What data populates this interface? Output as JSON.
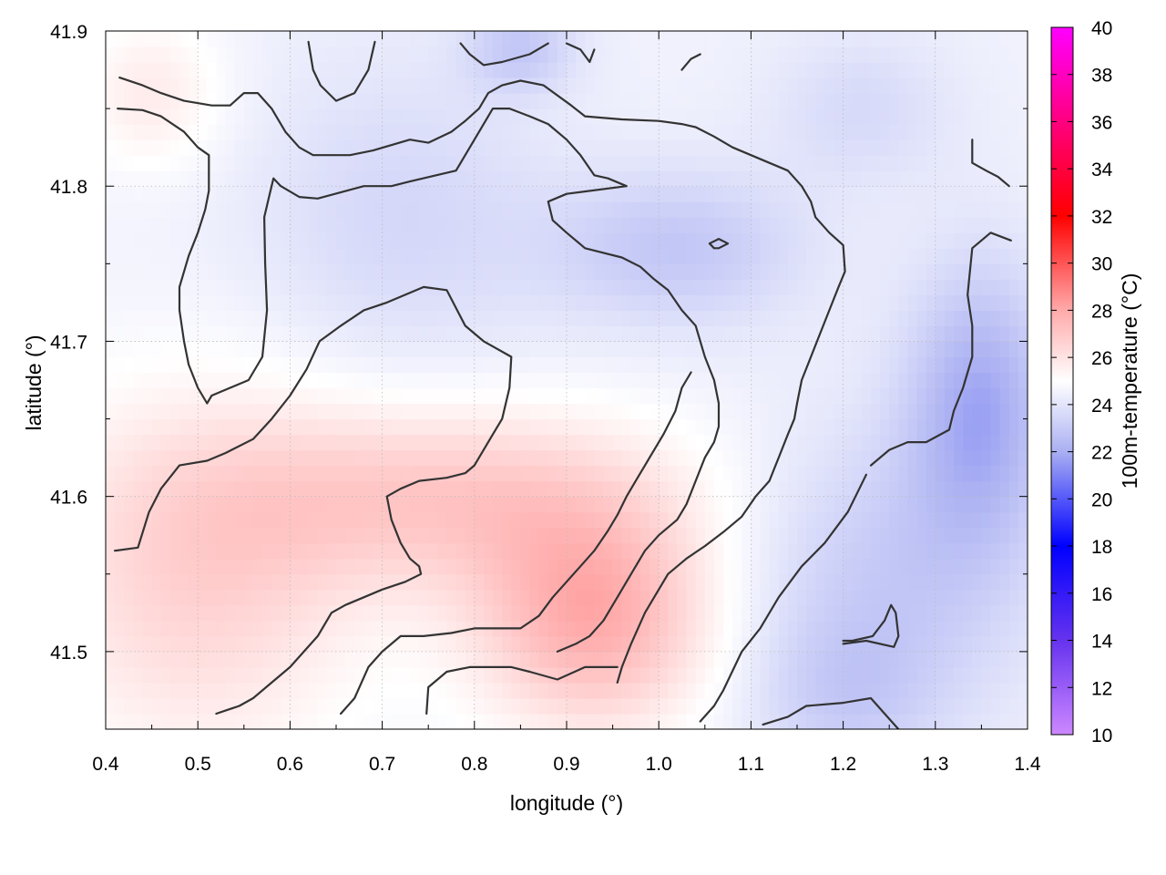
{
  "chart_data": {
    "type": "heatmap",
    "title": "",
    "xlabel": "longitude (°)",
    "ylabel": "latitude (°)",
    "colorbar_label": "100m-temperature (°C)",
    "xlim": [
      0.4,
      1.4
    ],
    "ylim": [
      41.45,
      41.9
    ],
    "x_ticks": [
      "0.4",
      "0.5",
      "0.6",
      "0.7",
      "0.8",
      "0.9",
      "1.0",
      "1.1",
      "1.2",
      "1.3",
      "1.4"
    ],
    "y_ticks": [
      "41.5",
      "41.6",
      "41.7",
      "41.8",
      "41.9"
    ],
    "colorbar_range": [
      10,
      40
    ],
    "colorbar_ticks": [
      "10",
      "12",
      "14",
      "16",
      "18",
      "20",
      "22",
      "24",
      "26",
      "28",
      "30",
      "32",
      "34",
      "36",
      "38",
      "40"
    ],
    "colormap": {
      "stops": [
        {
          "value": 10,
          "color": "#cc88ff"
        },
        {
          "value": 14,
          "color": "#6633ee"
        },
        {
          "value": 18,
          "color": "#0000ff"
        },
        {
          "value": 22,
          "color": "#aab0f2"
        },
        {
          "value": 25,
          "color": "#ffffff"
        },
        {
          "value": 28,
          "color": "#ffaaaa"
        },
        {
          "value": 32,
          "color": "#ff0000"
        },
        {
          "value": 40,
          "color": "#ff00ff"
        }
      ]
    },
    "grid": true,
    "field": {
      "base_temperature": 24.5,
      "features": [
        {
          "lon": 0.93,
          "lat": 41.52,
          "dlon": 0.13,
          "dlat": 0.07,
          "amp": 3.3
        },
        {
          "lon": 0.78,
          "lat": 41.6,
          "dlon": 0.25,
          "dlat": 0.06,
          "amp": 2.3
        },
        {
          "lon": 0.5,
          "lat": 41.55,
          "dlon": 0.18,
          "dlat": 0.12,
          "amp": 2.0
        },
        {
          "lon": 0.45,
          "lat": 41.86,
          "dlon": 0.08,
          "dlat": 0.05,
          "amp": 1.2
        },
        {
          "lon": 0.72,
          "lat": 41.78,
          "dlon": 0.16,
          "dlat": 0.1,
          "amp": -1.0
        },
        {
          "lon": 1.02,
          "lat": 41.76,
          "dlon": 0.14,
          "dlat": 0.05,
          "amp": -1.6
        },
        {
          "lon": 1.35,
          "lat": 41.66,
          "dlon": 0.08,
          "dlat": 0.09,
          "amp": -2.5
        },
        {
          "lon": 1.25,
          "lat": 41.55,
          "dlon": 0.16,
          "dlat": 0.1,
          "amp": -1.5
        },
        {
          "lon": 1.22,
          "lat": 41.85,
          "dlon": 0.1,
          "dlat": 0.05,
          "amp": -0.9
        },
        {
          "lon": 0.85,
          "lat": 41.89,
          "dlon": 0.06,
          "dlat": 0.03,
          "amp": -1.5
        },
        {
          "lon": 1.2,
          "lat": 41.47,
          "dlon": 0.1,
          "dlat": 0.05,
          "amp": -1.0
        }
      ]
    },
    "contours": [
      [
        [
          0.415,
          41.87
        ],
        [
          0.44,
          41.865
        ],
        [
          0.46,
          41.86
        ],
        [
          0.485,
          41.855
        ],
        [
          0.515,
          41.852
        ],
        [
          0.535,
          41.852
        ],
        [
          0.55,
          41.86
        ],
        [
          0.565,
          41.86
        ],
        [
          0.58,
          41.85
        ],
        [
          0.595,
          41.835
        ],
        [
          0.61,
          41.825
        ],
        [
          0.625,
          41.82
        ],
        [
          0.665,
          41.82
        ],
        [
          0.69,
          41.823
        ],
        [
          0.73,
          41.83
        ],
        [
          0.75,
          41.828
        ],
        [
          0.775,
          41.835
        ],
        [
          0.79,
          41.842
        ],
        [
          0.805,
          41.85
        ],
        [
          0.815,
          41.86
        ],
        [
          0.83,
          41.865
        ],
        [
          0.85,
          41.868
        ],
        [
          0.875,
          41.865
        ],
        [
          0.905,
          41.852
        ],
        [
          0.92,
          41.845
        ],
        [
          0.96,
          41.843
        ],
        [
          1.0,
          41.842
        ],
        [
          1.025,
          41.84
        ],
        [
          1.04,
          41.838
        ],
        [
          1.06,
          41.832
        ],
        [
          1.08,
          41.825
        ],
        [
          1.1,
          41.82
        ],
        [
          1.12,
          41.815
        ],
        [
          1.14,
          41.81
        ],
        [
          1.155,
          41.8
        ],
        [
          1.165,
          41.79
        ],
        [
          1.17,
          41.78
        ],
        [
          1.185,
          41.77
        ],
        [
          1.2,
          41.762
        ],
        [
          1.202,
          41.745
        ],
        [
          1.195,
          41.735
        ],
        [
          1.185,
          41.72
        ],
        [
          1.175,
          41.705
        ],
        [
          1.165,
          41.69
        ],
        [
          1.155,
          41.675
        ],
        [
          1.15,
          41.66
        ],
        [
          1.147,
          41.65
        ],
        [
          1.14,
          41.64
        ],
        [
          1.13,
          41.625
        ],
        [
          1.12,
          41.61
        ],
        [
          1.105,
          41.6
        ],
        [
          1.09,
          41.587
        ],
        [
          1.07,
          41.577
        ],
        [
          1.05,
          41.568
        ],
        [
          1.03,
          41.56
        ],
        [
          1.01,
          41.55
        ],
        [
          0.995,
          41.535
        ],
        [
          0.985,
          41.525
        ],
        [
          0.97,
          41.505
        ],
        [
          0.96,
          41.49
        ],
        [
          0.955,
          41.48
        ]
      ],
      [
        [
          0.413,
          41.85
        ],
        [
          0.44,
          41.849
        ],
        [
          0.46,
          41.845
        ],
        [
          0.485,
          41.835
        ],
        [
          0.5,
          41.825
        ],
        [
          0.512,
          41.82
        ],
        [
          0.512,
          41.81
        ],
        [
          0.512,
          41.797
        ],
        [
          0.508,
          41.785
        ],
        [
          0.5,
          41.77
        ],
        [
          0.49,
          41.755
        ],
        [
          0.48,
          41.735
        ],
        [
          0.48,
          41.72
        ],
        [
          0.485,
          41.7
        ],
        [
          0.49,
          41.685
        ],
        [
          0.5,
          41.67
        ],
        [
          0.51,
          41.66
        ],
        [
          0.515,
          41.665
        ],
        [
          0.535,
          41.67
        ],
        [
          0.555,
          41.675
        ],
        [
          0.57,
          41.69
        ],
        [
          0.575,
          41.72
        ],
        [
          0.573,
          41.75
        ],
        [
          0.572,
          41.78
        ],
        [
          0.578,
          41.795
        ],
        [
          0.582,
          41.805
        ],
        [
          0.59,
          41.8
        ],
        [
          0.61,
          41.793
        ],
        [
          0.63,
          41.792
        ],
        [
          0.68,
          41.8
        ],
        [
          0.71,
          41.8
        ],
        [
          0.73,
          41.803
        ],
        [
          0.78,
          41.81
        ],
        [
          0.8,
          41.83
        ],
        [
          0.82,
          41.85
        ],
        [
          0.838,
          41.85
        ],
        [
          0.86,
          41.845
        ],
        [
          0.88,
          41.84
        ],
        [
          0.9,
          41.83
        ],
        [
          0.915,
          41.82
        ],
        [
          0.93,
          41.807
        ],
        [
          0.945,
          41.805
        ],
        [
          0.965,
          41.8
        ],
        [
          0.9,
          41.795
        ],
        [
          0.88,
          41.79
        ],
        [
          0.885,
          41.778
        ],
        [
          0.9,
          41.77
        ],
        [
          0.92,
          41.76
        ],
        [
          0.94,
          41.757
        ],
        [
          0.96,
          41.754
        ],
        [
          0.98,
          41.748
        ],
        [
          0.995,
          41.74
        ],
        [
          1.01,
          41.733
        ],
        [
          1.025,
          41.72
        ],
        [
          1.04,
          41.71
        ],
        [
          1.05,
          41.69
        ],
        [
          1.06,
          41.675
        ],
        [
          1.065,
          41.66
        ],
        [
          1.065,
          41.645
        ],
        [
          1.06,
          41.635
        ],
        [
          1.05,
          41.625
        ],
        [
          1.04,
          41.61
        ],
        [
          1.03,
          41.595
        ],
        [
          1.02,
          41.585
        ],
        [
          1.0,
          41.575
        ],
        [
          0.985,
          41.565
        ],
        [
          0.97,
          41.55
        ],
        [
          0.955,
          41.535
        ],
        [
          0.94,
          41.52
        ],
        [
          0.925,
          41.51
        ],
        [
          0.91,
          41.505
        ],
        [
          0.89,
          41.5
        ]
      ],
      [
        [
          0.41,
          41.565
        ],
        [
          0.435,
          41.567
        ],
        [
          0.447,
          41.59
        ],
        [
          0.46,
          41.605
        ],
        [
          0.48,
          41.62
        ],
        [
          0.51,
          41.623
        ],
        [
          0.53,
          41.628
        ],
        [
          0.56,
          41.637
        ],
        [
          0.58,
          41.65
        ],
        [
          0.6,
          41.665
        ],
        [
          0.618,
          41.682
        ],
        [
          0.632,
          41.7
        ],
        [
          0.655,
          41.71
        ],
        [
          0.68,
          41.72
        ],
        [
          0.705,
          41.725
        ],
        [
          0.725,
          41.73
        ],
        [
          0.745,
          41.735
        ],
        [
          0.77,
          41.733
        ],
        [
          0.79,
          41.71
        ],
        [
          0.81,
          41.7
        ],
        [
          0.84,
          41.69
        ],
        [
          0.838,
          41.67
        ],
        [
          0.83,
          41.65
        ],
        [
          0.82,
          41.64
        ],
        [
          0.8,
          41.62
        ],
        [
          0.79,
          41.615
        ],
        [
          0.77,
          41.612
        ],
        [
          0.74,
          41.61
        ],
        [
          0.72,
          41.605
        ],
        [
          0.705,
          41.6
        ],
        [
          0.71,
          41.585
        ],
        [
          0.72,
          41.57
        ],
        [
          0.73,
          41.56
        ],
        [
          0.74,
          41.555
        ],
        [
          0.742,
          41.55
        ],
        [
          0.725,
          41.545
        ],
        [
          0.7,
          41.54
        ],
        [
          0.68,
          41.535
        ],
        [
          0.66,
          41.53
        ],
        [
          0.645,
          41.525
        ],
        [
          0.63,
          41.51
        ],
        [
          0.6,
          41.49
        ],
        [
          0.58,
          41.48
        ],
        [
          0.56,
          41.47
        ],
        [
          0.545,
          41.465
        ],
        [
          0.52,
          41.46
        ]
      ],
      [
        [
          0.655,
          41.46
        ],
        [
          0.67,
          41.47
        ],
        [
          0.685,
          41.49
        ],
        [
          0.7,
          41.5
        ],
        [
          0.72,
          41.51
        ],
        [
          0.745,
          41.51
        ],
        [
          0.775,
          41.512
        ],
        [
          0.8,
          41.515
        ],
        [
          0.82,
          41.515
        ],
        [
          0.85,
          41.515
        ],
        [
          0.87,
          41.523
        ],
        [
          0.885,
          41.535
        ],
        [
          0.9,
          41.545
        ],
        [
          0.915,
          41.555
        ],
        [
          0.93,
          41.565
        ],
        [
          0.945,
          41.578
        ],
        [
          0.955,
          41.588
        ],
        [
          0.965,
          41.6
        ],
        [
          0.975,
          41.61
        ],
        [
          0.99,
          41.625
        ],
        [
          1.005,
          41.64
        ],
        [
          1.018,
          41.655
        ],
        [
          1.025,
          41.67
        ],
        [
          1.035,
          41.68
        ]
      ],
      [
        [
          0.748,
          41.46
        ],
        [
          0.75,
          41.477
        ],
        [
          0.77,
          41.487
        ],
        [
          0.795,
          41.49
        ],
        [
          0.84,
          41.49
        ],
        [
          0.86,
          41.487
        ],
        [
          0.89,
          41.482
        ],
        [
          0.92,
          41.49
        ],
        [
          0.955,
          41.49
        ]
      ],
      [
        [
          1.113,
          41.453
        ],
        [
          1.14,
          41.458
        ],
        [
          1.16,
          41.465
        ],
        [
          1.2,
          41.467
        ],
        [
          1.23,
          41.47
        ],
        [
          1.245,
          41.46
        ],
        [
          1.26,
          41.45
        ]
      ],
      [
        [
          1.2,
          41.505
        ],
        [
          1.225,
          41.507
        ],
        [
          1.255,
          41.503
        ],
        [
          1.26,
          41.51
        ],
        [
          1.257,
          41.525
        ],
        [
          1.252,
          41.53
        ],
        [
          1.245,
          41.52
        ],
        [
          1.232,
          41.51
        ],
        [
          1.21,
          41.507
        ],
        [
          1.2,
          41.507
        ]
      ],
      [
        [
          1.23,
          41.62
        ],
        [
          1.25,
          41.63
        ],
        [
          1.27,
          41.635
        ],
        [
          1.29,
          41.635
        ],
        [
          1.315,
          41.643
        ],
        [
          1.32,
          41.655
        ],
        [
          1.33,
          41.67
        ],
        [
          1.34,
          41.69
        ],
        [
          1.34,
          41.71
        ],
        [
          1.335,
          41.73
        ],
        [
          1.34,
          41.76
        ],
        [
          1.36,
          41.77
        ],
        [
          1.382,
          41.765
        ]
      ],
      [
        [
          1.225,
          41.614
        ],
        [
          1.215,
          41.602
        ],
        [
          1.205,
          41.59
        ],
        [
          1.18,
          41.57
        ],
        [
          1.155,
          41.555
        ],
        [
          1.13,
          41.535
        ],
        [
          1.11,
          41.515
        ],
        [
          1.09,
          41.5
        ],
        [
          1.07,
          41.475
        ],
        [
          1.06,
          41.465
        ],
        [
          1.045,
          41.455
        ]
      ],
      [
        [
          1.34,
          41.83
        ],
        [
          1.34,
          41.815
        ],
        [
          1.355,
          41.81
        ],
        [
          1.368,
          41.806
        ],
        [
          1.38,
          41.8
        ]
      ],
      [
        [
          0.62,
          41.893
        ],
        [
          0.625,
          41.875
        ],
        [
          0.633,
          41.865
        ],
        [
          0.65,
          41.855
        ],
        [
          0.67,
          41.86
        ],
        [
          0.685,
          41.875
        ],
        [
          0.692,
          41.893
        ]
      ],
      [
        [
          0.785,
          41.892
        ],
        [
          0.795,
          41.885
        ],
        [
          0.81,
          41.878
        ],
        [
          0.83,
          41.88
        ],
        [
          0.86,
          41.885
        ],
        [
          0.88,
          41.892
        ]
      ],
      [
        [
          0.9,
          41.892
        ],
        [
          0.915,
          41.888
        ],
        [
          0.925,
          41.88
        ],
        [
          0.93,
          41.888
        ]
      ],
      [
        [
          1.025,
          41.875
        ],
        [
          1.035,
          41.882
        ],
        [
          1.045,
          41.885
        ]
      ],
      [
        [
          1.055,
          41.763
        ],
        [
          1.065,
          41.766
        ],
        [
          1.075,
          41.763
        ],
        [
          1.065,
          41.76
        ],
        [
          1.06,
          41.76
        ],
        [
          1.055,
          41.763
        ]
      ]
    ]
  }
}
